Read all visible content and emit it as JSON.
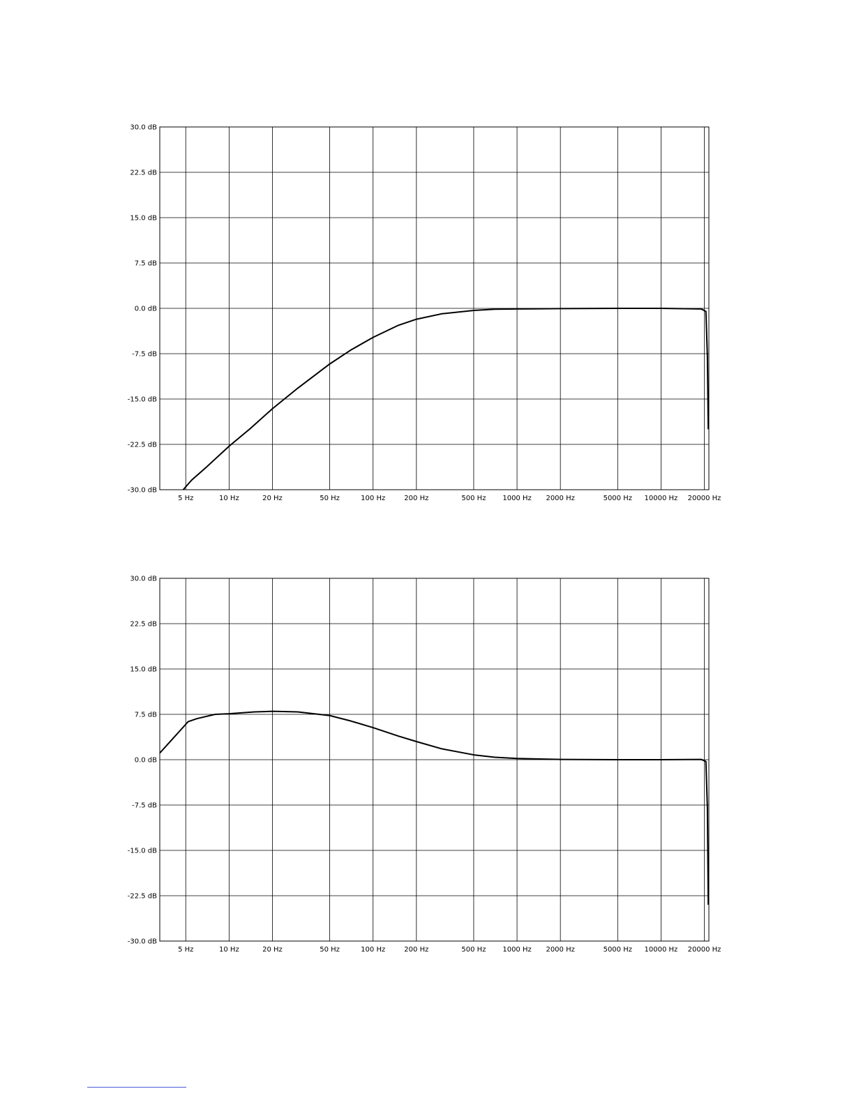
{
  "chart_data": [
    {
      "type": "line",
      "title": "",
      "xlabel": "",
      "ylabel": "",
      "xscale": "log",
      "xlim": [
        3.3,
        21500
      ],
      "ylim": [
        -30,
        30
      ],
      "grid": true,
      "x_ticks": [
        {
          "value": 5,
          "label": "5 Hz"
        },
        {
          "value": 10,
          "label": "10 Hz"
        },
        {
          "value": 20,
          "label": "20 Hz"
        },
        {
          "value": 50,
          "label": "50 Hz"
        },
        {
          "value": 100,
          "label": "100 Hz"
        },
        {
          "value": 200,
          "label": "200 Hz"
        },
        {
          "value": 500,
          "label": "500 Hz"
        },
        {
          "value": 1000,
          "label": "1000 Hz"
        },
        {
          "value": 2000,
          "label": "2000 Hz"
        },
        {
          "value": 5000,
          "label": "5000 Hz"
        },
        {
          "value": 10000,
          "label": "10000 Hz"
        },
        {
          "value": 20000,
          "label": "20000 Hz"
        }
      ],
      "y_ticks": [
        {
          "value": 30,
          "label": "30.0 dB"
        },
        {
          "value": 22.5,
          "label": "22.5 dB"
        },
        {
          "value": 15,
          "label": "15.0 dB"
        },
        {
          "value": 7.5,
          "label": "7.5 dB"
        },
        {
          "value": 0,
          "label": "0.0 dB"
        },
        {
          "value": -7.5,
          "label": "-7.5 dB"
        },
        {
          "value": -15,
          "label": "-15.0 dB"
        },
        {
          "value": -22.5,
          "label": "-22.5 dB"
        },
        {
          "value": -30,
          "label": "-30.0 dB"
        }
      ],
      "series": [
        {
          "x": [
            4.8,
            5.5,
            7,
            10,
            14,
            20,
            30,
            50,
            70,
            100,
            150,
            200,
            300,
            500,
            700,
            1000,
            2000,
            5000,
            10000,
            19000,
            20500,
            21000,
            21300
          ],
          "y": [
            -30,
            -28.4,
            -26.2,
            -22.8,
            -19.9,
            -16.6,
            -13.2,
            -9.2,
            -6.9,
            -4.8,
            -2.8,
            -1.8,
            -0.9,
            -0.35,
            -0.15,
            -0.1,
            -0.05,
            0,
            0,
            -0.1,
            -0.5,
            -8,
            -20
          ]
        }
      ]
    },
    {
      "type": "line",
      "title": "",
      "xlabel": "",
      "ylabel": "",
      "xscale": "log",
      "xlim": [
        3.3,
        21500
      ],
      "ylim": [
        -30,
        30
      ],
      "grid": true,
      "x_ticks": [
        {
          "value": 5,
          "label": "5 Hz"
        },
        {
          "value": 10,
          "label": "10 Hz"
        },
        {
          "value": 20,
          "label": "20 Hz"
        },
        {
          "value": 50,
          "label": "50 Hz"
        },
        {
          "value": 100,
          "label": "100 Hz"
        },
        {
          "value": 200,
          "label": "200 Hz"
        },
        {
          "value": 500,
          "label": "500 Hz"
        },
        {
          "value": 1000,
          "label": "1000 Hz"
        },
        {
          "value": 2000,
          "label": "2000 Hz"
        },
        {
          "value": 5000,
          "label": "5000 Hz"
        },
        {
          "value": 10000,
          "label": "10000 Hz"
        },
        {
          "value": 20000,
          "label": "20000 Hz"
        }
      ],
      "y_ticks": [
        {
          "value": 30,
          "label": "30.0 dB"
        },
        {
          "value": 22.5,
          "label": "22.5 dB"
        },
        {
          "value": 15,
          "label": "15.0 dB"
        },
        {
          "value": 7.5,
          "label": "7.5 dB"
        },
        {
          "value": 0,
          "label": "0.0 dB"
        },
        {
          "value": -7.5,
          "label": "-7.5 dB"
        },
        {
          "value": -15,
          "label": "-15.0 dB"
        },
        {
          "value": -22.5,
          "label": "-22.5 dB"
        },
        {
          "value": -30,
          "label": "-30.0 dB"
        }
      ],
      "series": [
        {
          "x": [
            3.3,
            5.2,
            6,
            8,
            10,
            15,
            20,
            30,
            50,
            70,
            100,
            150,
            200,
            300,
            500,
            700,
            1000,
            2000,
            5000,
            10000,
            19000,
            20500,
            21000,
            21300
          ],
          "y": [
            1.1,
            6.3,
            6.8,
            7.5,
            7.6,
            7.9,
            8.0,
            7.9,
            7.3,
            6.4,
            5.3,
            3.9,
            3.0,
            1.8,
            0.8,
            0.4,
            0.2,
            0.05,
            0,
            0,
            0.05,
            -0.3,
            -8,
            -24
          ]
        }
      ]
    }
  ],
  "footnote_rule_color": "#4a5bd8"
}
